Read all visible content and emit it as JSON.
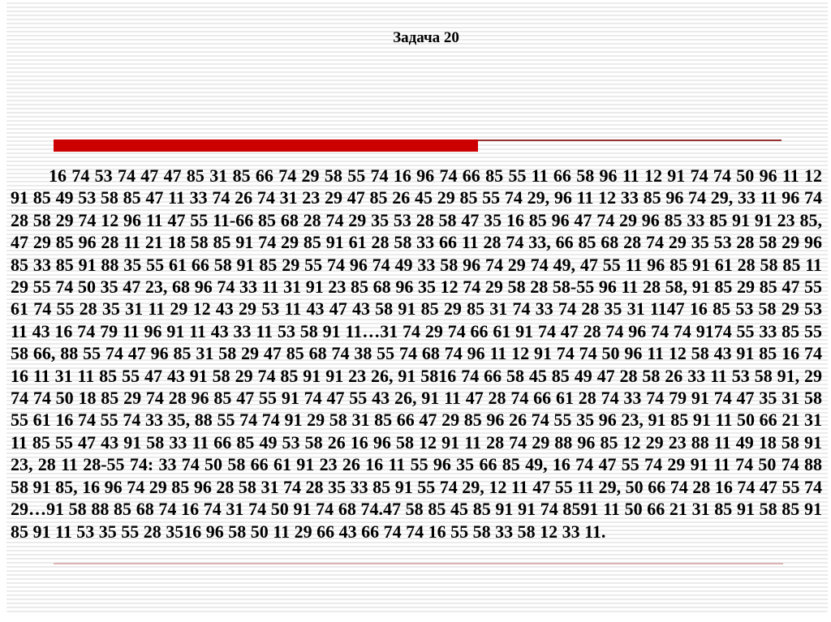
{
  "slide": {
    "title": "Задача 20",
    "numbers_text": "16 74 53 74 47 47 85 31 85 66 74 29 58 55 74 16 96 74 66 85 55 11 66 58 96 11 12 91 74 74 50 96 11 12 91 85 49 53 58 85 47 11 33 74 26 74 31 23 29 47 85 26 45 29 85 55 74 29, 96 11 12 33 85 96 74 29, 33 11 96 74 28 58 29 74 12 96 11 47 55 11-66 85 68 28 74 29 35 53 28 58 47 35 16 85 96 47 74 29 96 85 33 85 91 91 23 85, 47 29 85 96 28 11 21 18 58 85 91 74 29 85 91 61 28 58 33 66 11 28 74 33, 66 85 68 28 74 29 35 53 28 58 29 96 85 33 85 91 88 35 55 61 66 58 91 85 29 55 74 96 74 49 33 58 96 74 29 74 49, 47 55 11 96 85 91 61 28 58 85 11 29 55 74 50 35 47 23, 68 96 74 33 11 31 91 23 85 68 96 35 12 74 29 58 28 58-55 96 11 28 58, 91 85 29 85 47 55 61 74 55 28 35 31 11 29 12 43 29 53 11 43 47 43 58 91 85 29 85 31 74 33 74 28 35 31 1147 16 85 53 58 29 53 11 43 16 74 79 11 96 91 11 43 33 11 53 58 91 11…31 74 29 74 66 61 91 74 47 28 74 96 74 74 9174 55 33 85 55 58 66, 88 55 74 47 96 85 31 58 29 47 85 68 74 38 55 74 68 74 96 11 12 91 74 74 50 96 11 12 58 43 91 85 16 74 16 11 31 11 85 55 47 43 91 58 29 74 85 91 91 23 26, 91 5816 74 66 58 45 85 49 47 28 58 26 33 11 53 58 91, 29 74 74 50 18 85 29 74 28 96 85 47 55 91 74 47 55 43 26, 91 11 47 28 74 66 61 28 74 33 74 79 91 74 47 35 31 58 55 61 16 74 55 74 33 35, 88 55 74 74 91 29 58 31 85 66 47 29 85 96 26 74 55 35 96 23, 91 85 91 11 50 66 21 31 11 85 55 47 43 91 58 33 11 66 85 49 53 58 26 16 96 58 12 91 11 28 74 29 88 96 85 12 29 23 88 11 49 18 58 91 23, 28 11 28-55 74: 33 74 50 58 66 61 91 23 26 16 11 55 96 35 66 85 49, 16 74 47 55 74 29 91 11 74 50 74 88 58 91 85, 16 96 74 29 85 96 28 58 31 74 28 35 33 85 91 55 74 29, 12 11 47 55 11 29, 50 66 74 28 16 74 47 55 74 29…91 58 88 85 68 74 16 74 31 74 50 91 74 68 74.47 58 85 45 85 91 91 74 8591 11 50 66 21 31 85 91 58 85 91 85 91 11 53 35 55 28 3516 96 58 50 11 29 66 43 66 74 74 16 55 58 33 58 12 33 11.",
    "colors": {
      "accent_bar": "#cc0000",
      "accent_thin_line": "#993333",
      "bottom_rule": "#ddb2b2",
      "text": "#000000"
    }
  }
}
